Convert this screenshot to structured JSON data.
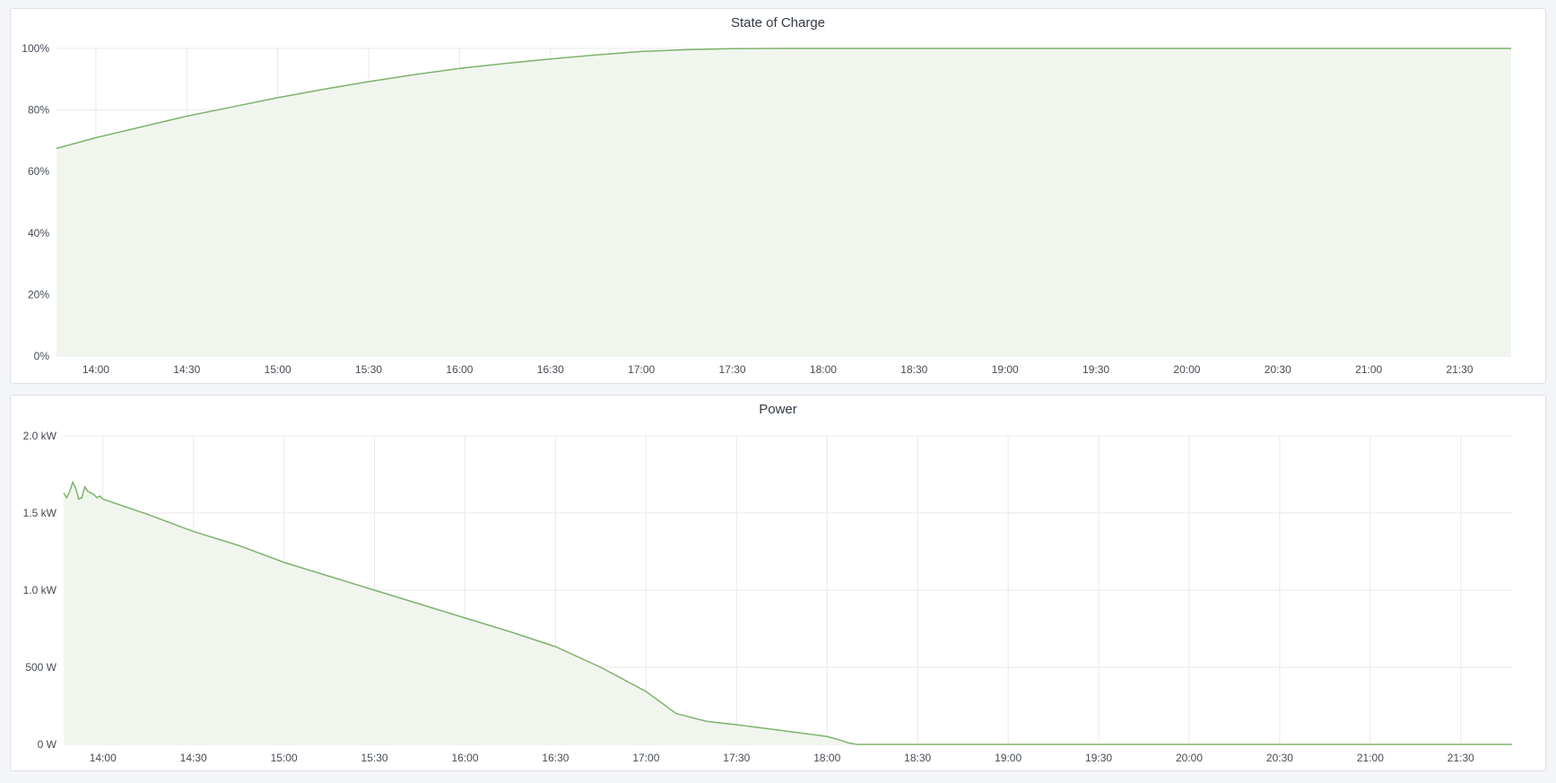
{
  "colors": {
    "series": "#7eb26d",
    "fill": "#f0f6ee",
    "grid": "#e9e9ea"
  },
  "chart_data": [
    {
      "type": "area",
      "title": "State of Charge",
      "xlim": [
        "13:47",
        "21:47"
      ],
      "ylim": [
        0,
        100
      ],
      "grid": true,
      "x_ticks": [
        "14:00",
        "14:30",
        "15:00",
        "15:30",
        "16:00",
        "16:30",
        "17:00",
        "17:30",
        "18:00",
        "18:30",
        "19:00",
        "19:30",
        "20:00",
        "20:30",
        "21:00",
        "21:30"
      ],
      "y_ticks": [
        "0%",
        "20%",
        "40%",
        "60%",
        "80%",
        "100%"
      ],
      "y_tick_values": [
        0,
        20,
        40,
        60,
        80,
        100
      ],
      "x": [
        "13:47",
        "14:00",
        "14:15",
        "14:30",
        "14:45",
        "15:00",
        "15:15",
        "15:30",
        "15:45",
        "16:00",
        "16:15",
        "16:30",
        "16:45",
        "17:00",
        "17:15",
        "17:30",
        "17:45",
        "18:00",
        "21:47"
      ],
      "values": [
        67.5,
        71,
        74.5,
        78,
        81,
        84,
        86.7,
        89.2,
        91.5,
        93.5,
        95.1,
        96.6,
        97.9,
        99,
        99.6,
        99.9,
        100,
        100,
        100
      ]
    },
    {
      "type": "area",
      "title": "Power",
      "xlim": [
        "13:47",
        "21:47"
      ],
      "ylim": [
        0,
        2000
      ],
      "grid": true,
      "x_ticks": [
        "14:00",
        "14:30",
        "15:00",
        "15:30",
        "16:00",
        "16:30",
        "17:00",
        "17:30",
        "18:00",
        "18:30",
        "19:00",
        "19:30",
        "20:00",
        "20:30",
        "21:00",
        "21:30"
      ],
      "y_ticks": [
        "0 W",
        "500 W",
        "1.0 kW",
        "1.5 kW",
        "2.0 kW"
      ],
      "y_tick_values": [
        0,
        500,
        1000,
        1500,
        2000
      ],
      "x": [
        "13:47",
        "13:48",
        "13:49",
        "13:50",
        "13:51",
        "13:52",
        "13:53",
        "13:54",
        "13:55",
        "13:56",
        "13:57",
        "13:58",
        "13:59",
        "14:00",
        "14:15",
        "14:30",
        "14:45",
        "15:00",
        "15:15",
        "15:30",
        "15:45",
        "16:00",
        "16:15",
        "16:30",
        "16:45",
        "17:00",
        "17:10",
        "17:20",
        "17:30",
        "17:45",
        "18:00",
        "18:04",
        "18:07",
        "18:10",
        "21:47"
      ],
      "values": [
        1630,
        1600,
        1640,
        1700,
        1660,
        1590,
        1600,
        1670,
        1640,
        1630,
        1620,
        1600,
        1610,
        1590,
        1490,
        1380,
        1290,
        1180,
        1090,
        1000,
        910,
        820,
        730,
        634,
        500,
        343,
        200,
        150,
        128,
        90,
        52,
        30,
        10,
        0,
        0
      ]
    }
  ]
}
